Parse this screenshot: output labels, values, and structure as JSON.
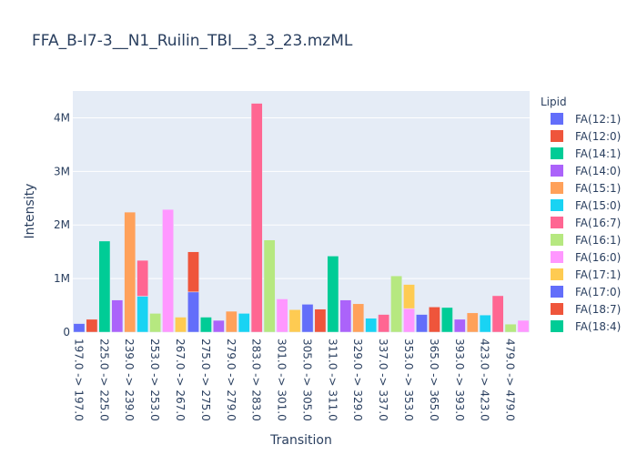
{
  "chart_data": {
    "type": "bar",
    "title": "FFA_B-I7-3__N1_Ruilin_TBI__3_3_23.mzML",
    "xlabel": "Transition",
    "ylabel": "Intensity",
    "legend_title": "Lipid",
    "legend_placement": "right",
    "grid": true,
    "ylim": [
      0,
      4500000
    ],
    "y_ticks": [
      {
        "value": 0,
        "label": "0"
      },
      {
        "value": 1000000,
        "label": "1M"
      },
      {
        "value": 2000000,
        "label": "2M"
      },
      {
        "value": 3000000,
        "label": "3M"
      },
      {
        "value": 4000000,
        "label": "4M"
      }
    ],
    "x_tick_labels": [
      "197.0 -> 197.0",
      "225.0 -> 225.0",
      "239.0 -> 239.0",
      "253.0 -> 253.0",
      "267.0 -> 267.0",
      "275.0 -> 275.0",
      "279.0 -> 279.0",
      "283.0 -> 283.0",
      "301.0 -> 301.0",
      "305.0 -> 305.0",
      "311.0 -> 311.0",
      "329.0 -> 329.0",
      "337.0 -> 337.0",
      "353.0 -> 353.0",
      "365.0 -> 365.0",
      "393.0 -> 393.0",
      "423.0 -> 423.0",
      "479.0 -> 479.0"
    ],
    "legend": [
      {
        "name": "FA(12:1)",
        "color": "#636efa"
      },
      {
        "name": "FA(12:0)",
        "color": "#EF553B"
      },
      {
        "name": "FA(14:1)",
        "color": "#00cc96"
      },
      {
        "name": "FA(14:0)",
        "color": "#ab63fa"
      },
      {
        "name": "FA(15:1)",
        "color": "#FFA15A"
      },
      {
        "name": "FA(15:0)",
        "color": "#19d3f3"
      },
      {
        "name": "FA(16:7)",
        "color": "#FF6692"
      },
      {
        "name": "FA(16:1)",
        "color": "#B6E880"
      },
      {
        "name": "FA(16:0)",
        "color": "#FF97FF"
      },
      {
        "name": "FA(17:1)",
        "color": "#FECB52"
      },
      {
        "name": "FA(17:0)",
        "color": "#636efa"
      },
      {
        "name": "FA(18:7)",
        "color": "#EF553B"
      },
      {
        "name": "FA(18:4)",
        "color": "#00cc96"
      }
    ],
    "bars": [
      {
        "x": 0,
        "base": 0,
        "value": 160000,
        "color": "#636efa"
      },
      {
        "x": 0.5,
        "base": 0,
        "value": 240000,
        "color": "#EF553B"
      },
      {
        "x": 1,
        "base": 0,
        "value": 1700000,
        "color": "#00cc96"
      },
      {
        "x": 1.5,
        "base": 0,
        "value": 600000,
        "color": "#ab63fa"
      },
      {
        "x": 2,
        "base": 0,
        "value": 2240000,
        "color": "#FFA15A"
      },
      {
        "x": 2.5,
        "base": 0,
        "value": 670000,
        "color": "#19d3f3"
      },
      {
        "x": 2.5,
        "base": 670000,
        "value": 670000,
        "color": "#FF6692"
      },
      {
        "x": 3,
        "base": 0,
        "value": 350000,
        "color": "#B6E880"
      },
      {
        "x": 3.5,
        "base": 0,
        "value": 2290000,
        "color": "#FF97FF"
      },
      {
        "x": 4,
        "base": 0,
        "value": 280000,
        "color": "#FECB52"
      },
      {
        "x": 4.5,
        "base": 0,
        "value": 750000,
        "color": "#636efa"
      },
      {
        "x": 4.5,
        "base": 750000,
        "value": 750000,
        "color": "#EF553B"
      },
      {
        "x": 5,
        "base": 0,
        "value": 280000,
        "color": "#00cc96"
      },
      {
        "x": 5.5,
        "base": 0,
        "value": 220000,
        "color": "#ab63fa"
      },
      {
        "x": 6,
        "base": 0,
        "value": 390000,
        "color": "#FFA15A"
      },
      {
        "x": 6.5,
        "base": 0,
        "value": 350000,
        "color": "#19d3f3"
      },
      {
        "x": 7,
        "base": 0,
        "value": 4270000,
        "color": "#FF6692"
      },
      {
        "x": 7.5,
        "base": 0,
        "value": 1720000,
        "color": "#B6E880"
      },
      {
        "x": 8,
        "base": 0,
        "value": 620000,
        "color": "#FF97FF"
      },
      {
        "x": 8.5,
        "base": 0,
        "value": 420000,
        "color": "#FECB52"
      },
      {
        "x": 9,
        "base": 0,
        "value": 520000,
        "color": "#636efa"
      },
      {
        "x": 9.5,
        "base": 0,
        "value": 430000,
        "color": "#EF553B"
      },
      {
        "x": 10,
        "base": 0,
        "value": 1420000,
        "color": "#00cc96"
      },
      {
        "x": 10.5,
        "base": 0,
        "value": 600000,
        "color": "#ab63fa"
      },
      {
        "x": 11,
        "base": 0,
        "value": 530000,
        "color": "#FFA15A"
      },
      {
        "x": 11.5,
        "base": 0,
        "value": 260000,
        "color": "#19d3f3"
      },
      {
        "x": 12,
        "base": 0,
        "value": 330000,
        "color": "#FF6692"
      },
      {
        "x": 12.5,
        "base": 0,
        "value": 1050000,
        "color": "#B6E880"
      },
      {
        "x": 13,
        "base": 0,
        "value": 440000,
        "color": "#FF97FF"
      },
      {
        "x": 13,
        "base": 440000,
        "value": 450000,
        "color": "#FECB52"
      },
      {
        "x": 13.5,
        "base": 0,
        "value": 330000,
        "color": "#636efa"
      },
      {
        "x": 14,
        "base": 0,
        "value": 470000,
        "color": "#EF553B"
      },
      {
        "x": 14.5,
        "base": 0,
        "value": 460000,
        "color": "#00cc96"
      },
      {
        "x": 15,
        "base": 0,
        "value": 240000,
        "color": "#ab63fa"
      },
      {
        "x": 15.5,
        "base": 0,
        "value": 360000,
        "color": "#FFA15A"
      },
      {
        "x": 16,
        "base": 0,
        "value": 320000,
        "color": "#19d3f3"
      },
      {
        "x": 16.5,
        "base": 0,
        "value": 680000,
        "color": "#FF6692"
      },
      {
        "x": 17,
        "base": 0,
        "value": 150000,
        "color": "#B6E880"
      },
      {
        "x": 17.5,
        "base": 0,
        "value": 220000,
        "color": "#FF97FF"
      }
    ]
  }
}
